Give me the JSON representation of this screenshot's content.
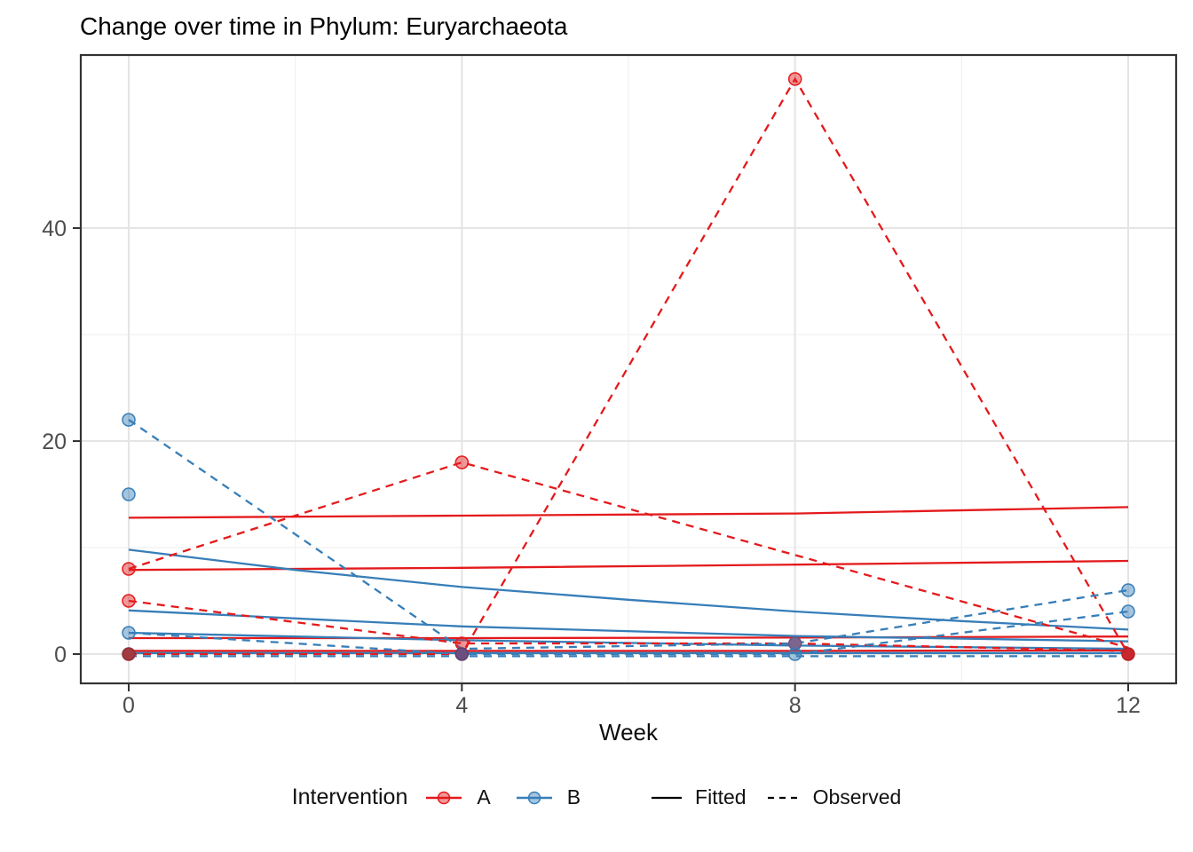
{
  "title": "Change over time in Phylum: Euryarchaeota",
  "axes": {
    "x_title": "Week",
    "x_tick_labels": [
      "0",
      "4",
      "8",
      "12"
    ],
    "y_tick_labels": [
      "0",
      "20",
      "40"
    ]
  },
  "legend": {
    "title": "Intervention",
    "groups": [
      {
        "label": "A",
        "color": "#E41A1C"
      },
      {
        "label": "B",
        "color": "#377EB8"
      }
    ],
    "linetypes": [
      {
        "label": "Fitted",
        "style": "solid"
      },
      {
        "label": "Observed",
        "style": "dashed"
      }
    ]
  },
  "colors": {
    "grid_major": "#E4E4E4",
    "grid_minor": "#F1F1F1",
    "panel_border": "#333333",
    "tick": "#333333",
    "tick_text": "#4d4d4d",
    "red": "#E41A1C",
    "blue": "#377EB8"
  },
  "chart_data": {
    "type": "line",
    "title": "Change over time in Phylum: Euryarchaeota",
    "xlabel": "Week",
    "ylabel": "",
    "x_ticks": [
      0,
      4,
      8,
      12
    ],
    "x_minor_ticks": [
      2,
      6,
      10
    ],
    "y_ticks": [
      0,
      20,
      40
    ],
    "y_minor_ticks": [
      10,
      30
    ],
    "xlim": [
      -0.58,
      12.58
    ],
    "ylim": [
      -2.75,
      56.25
    ],
    "grid": true,
    "legend_position": "bottom",
    "group_colors": {
      "A": "#E41A1C",
      "B": "#377EB8"
    },
    "series": [
      {
        "name": "A-fitted-1",
        "group": "A",
        "linetype": "fitted",
        "points": [
          [
            0,
            12.8
          ],
          [
            4,
            13.0
          ],
          [
            8,
            13.2
          ],
          [
            12,
            13.8
          ]
        ]
      },
      {
        "name": "A-fitted-2",
        "group": "A",
        "linetype": "fitted",
        "points": [
          [
            0,
            7.9
          ],
          [
            4,
            8.1
          ],
          [
            8,
            8.4
          ],
          [
            12,
            8.75
          ]
        ]
      },
      {
        "name": "A-fitted-3",
        "group": "A",
        "linetype": "fitted",
        "points": [
          [
            0,
            1.5
          ],
          [
            4,
            1.5
          ],
          [
            8,
            1.55
          ],
          [
            12,
            1.65
          ]
        ]
      },
      {
        "name": "A-fitted-4",
        "group": "A",
        "linetype": "fitted",
        "points": [
          [
            0,
            0.3
          ],
          [
            4,
            0.3
          ],
          [
            8,
            0.3
          ],
          [
            12,
            0.35
          ]
        ]
      },
      {
        "name": "B-fitted-1",
        "group": "B",
        "linetype": "fitted",
        "points": [
          [
            0,
            9.8
          ],
          [
            2,
            7.9
          ],
          [
            4,
            6.3
          ],
          [
            6,
            5.1
          ],
          [
            8,
            4.0
          ],
          [
            10,
            3.1
          ],
          [
            12,
            2.3
          ]
        ]
      },
      {
        "name": "B-fitted-2",
        "group": "B",
        "linetype": "fitted",
        "points": [
          [
            0,
            4.1
          ],
          [
            4,
            2.6
          ],
          [
            8,
            1.7
          ],
          [
            12,
            1.2
          ]
        ]
      },
      {
        "name": "B-fitted-3",
        "group": "B",
        "linetype": "fitted",
        "points": [
          [
            0,
            2.0
          ],
          [
            4,
            1.3
          ],
          [
            8,
            0.8
          ],
          [
            12,
            0.5
          ]
        ]
      },
      {
        "name": "B-fitted-4",
        "group": "B",
        "linetype": "fitted",
        "points": [
          [
            0,
            0.1
          ],
          [
            12,
            0.1
          ]
        ]
      },
      {
        "name": "A-observed-1",
        "group": "A",
        "linetype": "observed",
        "points": [
          [
            0,
            8
          ],
          [
            4,
            18
          ],
          [
            12,
            0.6
          ]
        ]
      },
      {
        "name": "A-observed-2",
        "group": "A",
        "linetype": "observed",
        "points": [
          [
            0,
            5
          ],
          [
            4,
            1
          ],
          [
            8,
            1
          ],
          [
            12,
            0.3
          ]
        ]
      },
      {
        "name": "A-observed-3",
        "group": "A",
        "linetype": "observed",
        "points": [
          [
            0,
            0
          ],
          [
            4,
            0
          ],
          [
            8,
            54
          ],
          [
            12,
            0
          ]
        ]
      },
      {
        "name": "B-observed-1",
        "group": "B",
        "linetype": "observed",
        "points": [
          [
            0,
            22
          ],
          [
            4,
            0.5
          ],
          [
            8,
            1
          ],
          [
            12,
            6
          ]
        ]
      },
      {
        "name": "B-observed-2",
        "group": "B",
        "linetype": "observed",
        "points": [
          [
            0,
            2
          ],
          [
            4,
            0
          ],
          [
            8,
            0
          ],
          [
            12,
            4
          ]
        ]
      },
      {
        "name": "B-observed-3",
        "group": "B",
        "linetype": "observed",
        "points": [
          [
            0,
            -0.2
          ],
          [
            12,
            -0.2
          ]
        ]
      }
    ],
    "markers": [
      {
        "x": 0,
        "y": 22,
        "c": "B"
      },
      {
        "x": 0,
        "y": 15,
        "c": "B"
      },
      {
        "x": 0,
        "y": 8,
        "c": "A"
      },
      {
        "x": 0,
        "y": 5,
        "c": "A"
      },
      {
        "x": 0,
        "y": 2,
        "c": "B"
      },
      {
        "x": 0,
        "y": 0,
        "c": "maroon"
      },
      {
        "x": 4,
        "y": 18,
        "c": "A"
      },
      {
        "x": 4,
        "y": 1,
        "c": "A"
      },
      {
        "x": 4,
        "y": 0,
        "c": "purple_dark"
      },
      {
        "x": 8,
        "y": 54,
        "c": "A"
      },
      {
        "x": 8,
        "y": 1,
        "c": "purple"
      },
      {
        "x": 8,
        "y": 0,
        "c": "B"
      },
      {
        "x": 12,
        "y": 6,
        "c": "B"
      },
      {
        "x": 12,
        "y": 4,
        "c": "B"
      },
      {
        "x": 12,
        "y": 0,
        "c": "crimson"
      }
    ],
    "marker_colors": {
      "A": {
        "fill": "rgba(228,26,28,0.45)",
        "stroke": "#E41A1C"
      },
      "B": {
        "fill": "rgba(55,126,184,0.45)",
        "stroke": "#377EB8"
      },
      "maroon": {
        "fill": "#A23B40",
        "stroke": "#8E2F36"
      },
      "purple_dark": {
        "fill": "#6C4F7F",
        "stroke": "#5C4270"
      },
      "purple": {
        "fill": "#7D6590",
        "stroke": "#6A547E"
      },
      "crimson": {
        "fill": "#C8282D",
        "stroke": "#B71F24"
      }
    }
  }
}
